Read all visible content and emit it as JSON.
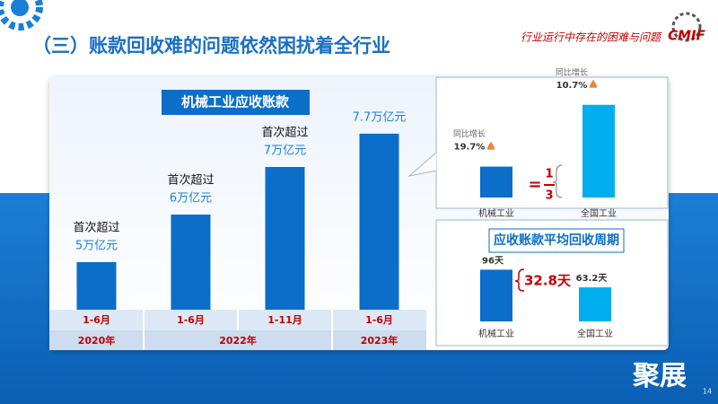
{
  "slide_title": "（三）账款回收难的问题依然困扰着全行业",
  "section_label": "行业运行中存在的困难与问题",
  "logo": "CMIF",
  "brand": "聚展",
  "page_number": "14",
  "chart_data": [
    {
      "type": "bar",
      "title": "机械工业应收账款",
      "categories": [
        "1-6月",
        "1-6月",
        "1-11月",
        "1-6月"
      ],
      "groups": [
        {
          "label": "2020年",
          "span": 1
        },
        {
          "label": "2022年",
          "span": 2
        },
        {
          "label": "2023年",
          "span": 1
        }
      ],
      "values": [
        5,
        6,
        7,
        7.7
      ],
      "value_labels": [
        "5万亿元",
        "6万亿元",
        "7万亿元",
        "7.7万亿元"
      ],
      "annotations": [
        "首次超过",
        "首次超过",
        "首次超过",
        null
      ],
      "color": "#0b6ec9",
      "ylim": [
        4,
        8
      ]
    },
    {
      "type": "bar",
      "categories": [
        "机械工业",
        "全国工业"
      ],
      "values": [
        1,
        3
      ],
      "colors": [
        "#0b6ec9",
        "#00aeef"
      ],
      "ylim": [
        0,
        3.4
      ],
      "growth_label": "同比增长",
      "growth_labels": [
        "19.7%",
        "10.7%"
      ],
      "ratio": {
        "sign": "=",
        "numerator": "1",
        "denominator": "3"
      }
    },
    {
      "type": "bar",
      "title": "应收账款平均回收周期",
      "categories": [
        "机械工业",
        "全国工业"
      ],
      "values": [
        96,
        63.2
      ],
      "value_labels": [
        "96天",
        "63.2天"
      ],
      "colors": [
        "#0b6ec9",
        "#00aeef"
      ],
      "ylim": [
        0,
        100
      ],
      "difference_label": "32.8天"
    }
  ]
}
